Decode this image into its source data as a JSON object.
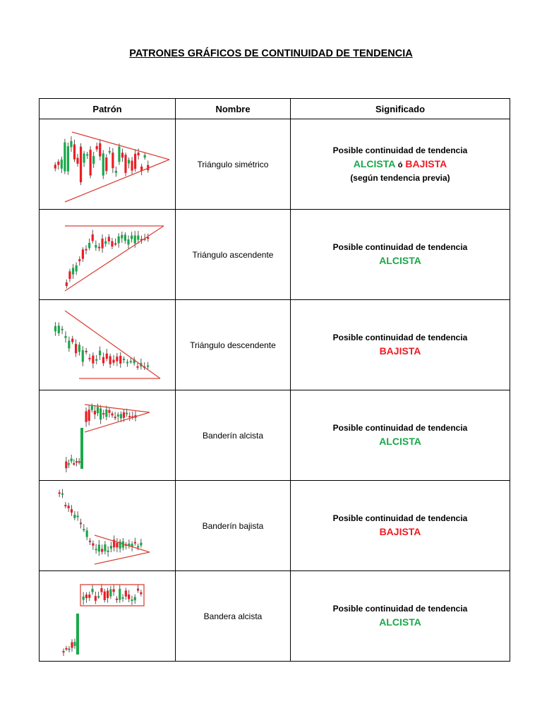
{
  "document": {
    "title": "PATRONES GRÁFICOS DE CONTINUIDAD DE TENDENCIA"
  },
  "table": {
    "headers": {
      "pattern": "Patrón",
      "name": "Nombre",
      "meaning": "Significado"
    },
    "rows": [
      {
        "name": "Triángulo simétrico",
        "meaning_line": "Posible continuidad de tendencia",
        "trend_a": "ALCISTA",
        "connector": "ó",
        "trend_b": "BAJISTA",
        "note": "(según tendencia previa)"
      },
      {
        "name": "Triángulo ascendente",
        "meaning_line": "Posible continuidad de tendencia",
        "trend": "ALCISTA"
      },
      {
        "name": "Triángulo descendente",
        "meaning_line": "Posible continuidad de tendencia",
        "trend": "BAJISTA"
      },
      {
        "name": "Banderín alcista",
        "meaning_line": "Posible continuidad de tendencia",
        "trend": "ALCISTA"
      },
      {
        "name": "Banderín bajista",
        "meaning_line": "Posible continuidad de tendencia",
        "trend": "BAJISTA"
      },
      {
        "name": "Bandera alcista",
        "meaning_line": "Posible continuidad de tendencia",
        "trend": "ALCISTA"
      }
    ]
  },
  "colors": {
    "bullish": "#1aa84a",
    "bearish": "#ee1c24",
    "pattern_line": "#d9453a"
  },
  "icons": [
    "symmetric-triangle-chart-icon",
    "ascending-triangle-chart-icon",
    "descending-triangle-chart-icon",
    "bull-pennant-chart-icon",
    "bear-pennant-chart-icon",
    "bull-flag-chart-icon"
  ]
}
